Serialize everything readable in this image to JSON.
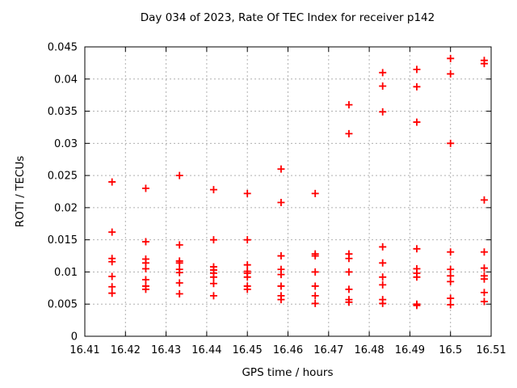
{
  "chart_data": {
    "type": "scatter",
    "title": "Day 034 of 2023, Rate Of TEC Index for receiver p142",
    "xlabel": "GPS time / hours",
    "ylabel": "ROTI / TECUs",
    "xlim": [
      16.41,
      16.51
    ],
    "ylim": [
      0,
      0.045
    ],
    "xticks": [
      16.41,
      16.42,
      16.43,
      16.44,
      16.45,
      16.46,
      16.47,
      16.48,
      16.49,
      16.5,
      16.51
    ],
    "xtick_labels": [
      "16.41",
      "16.42",
      "16.43",
      "16.44",
      "16.45",
      "16.46",
      "16.47",
      "16.48",
      "16.49",
      "16.5",
      "16.51"
    ],
    "yticks": [
      0,
      0.005,
      0.01,
      0.015,
      0.02,
      0.025,
      0.03,
      0.035,
      0.04,
      0.045
    ],
    "ytick_labels": [
      "0",
      "0.005",
      "0.01",
      "0.015",
      "0.02",
      "0.025",
      "0.03",
      "0.035",
      "0.04",
      "0.045"
    ],
    "grid": true,
    "grid_style": "dashed",
    "grid_color": "#b0b0b0",
    "legend": false,
    "marker": "plus",
    "marker_color": "#ff0000",
    "axis_color": "#000000",
    "series": [
      {
        "name": "ROTI",
        "points": [
          [
            16.4167,
            0.024
          ],
          [
            16.4167,
            0.0162
          ],
          [
            16.4167,
            0.0121
          ],
          [
            16.4167,
            0.0116
          ],
          [
            16.4167,
            0.0093
          ],
          [
            16.4167,
            0.0077
          ],
          [
            16.4167,
            0.0067
          ],
          [
            16.425,
            0.023
          ],
          [
            16.425,
            0.0147
          ],
          [
            16.425,
            0.012
          ],
          [
            16.425,
            0.0114
          ],
          [
            16.425,
            0.0105
          ],
          [
            16.425,
            0.0088
          ],
          [
            16.425,
            0.0078
          ],
          [
            16.425,
            0.0073
          ],
          [
            16.4333,
            0.025
          ],
          [
            16.4333,
            0.0142
          ],
          [
            16.4333,
            0.0117
          ],
          [
            16.4333,
            0.0114
          ],
          [
            16.4333,
            0.0104
          ],
          [
            16.4333,
            0.0099
          ],
          [
            16.4333,
            0.0083
          ],
          [
            16.4333,
            0.0066
          ],
          [
            16.4417,
            0.0228
          ],
          [
            16.4417,
            0.015
          ],
          [
            16.4417,
            0.0108
          ],
          [
            16.4417,
            0.0103
          ],
          [
            16.4417,
            0.0098
          ],
          [
            16.4417,
            0.0092
          ],
          [
            16.4417,
            0.0082
          ],
          [
            16.4417,
            0.0063
          ],
          [
            16.45,
            0.0222
          ],
          [
            16.45,
            0.015
          ],
          [
            16.45,
            0.0111
          ],
          [
            16.45,
            0.0101
          ],
          [
            16.45,
            0.0098
          ],
          [
            16.45,
            0.0092
          ],
          [
            16.45,
            0.0078
          ],
          [
            16.45,
            0.0073
          ],
          [
            16.4583,
            0.026
          ],
          [
            16.4583,
            0.0208
          ],
          [
            16.4583,
            0.0125
          ],
          [
            16.4583,
            0.0104
          ],
          [
            16.4583,
            0.0096
          ],
          [
            16.4583,
            0.0078
          ],
          [
            16.4583,
            0.0063
          ],
          [
            16.4583,
            0.0057
          ],
          [
            16.4667,
            0.0222
          ],
          [
            16.4667,
            0.0128
          ],
          [
            16.4667,
            0.0125
          ],
          [
            16.4667,
            0.01
          ],
          [
            16.4667,
            0.0078
          ],
          [
            16.4667,
            0.0063
          ],
          [
            16.4667,
            0.0051
          ],
          [
            16.475,
            0.036
          ],
          [
            16.475,
            0.0315
          ],
          [
            16.475,
            0.0128
          ],
          [
            16.475,
            0.0121
          ],
          [
            16.475,
            0.01
          ],
          [
            16.475,
            0.0073
          ],
          [
            16.475,
            0.0057
          ],
          [
            16.475,
            0.0053
          ],
          [
            16.4833,
            0.041
          ],
          [
            16.4833,
            0.0389
          ],
          [
            16.4833,
            0.0349
          ],
          [
            16.4833,
            0.0139
          ],
          [
            16.4833,
            0.0114
          ],
          [
            16.4833,
            0.0092
          ],
          [
            16.4833,
            0.008
          ],
          [
            16.4833,
            0.0057
          ],
          [
            16.4833,
            0.0051
          ],
          [
            16.4917,
            0.0415
          ],
          [
            16.4917,
            0.0388
          ],
          [
            16.4917,
            0.0333
          ],
          [
            16.4917,
            0.0136
          ],
          [
            16.4917,
            0.0105
          ],
          [
            16.4917,
            0.0098
          ],
          [
            16.4917,
            0.0092
          ],
          [
            16.4917,
            0.005
          ],
          [
            16.4917,
            0.0048
          ],
          [
            16.5,
            0.0432
          ],
          [
            16.5,
            0.0408
          ],
          [
            16.5,
            0.03
          ],
          [
            16.5,
            0.0131
          ],
          [
            16.5,
            0.0104
          ],
          [
            16.5,
            0.0094
          ],
          [
            16.5,
            0.0085
          ],
          [
            16.5,
            0.0059
          ],
          [
            16.5,
            0.0049
          ],
          [
            16.5083,
            0.0429
          ],
          [
            16.5083,
            0.0424
          ],
          [
            16.5083,
            0.0212
          ],
          [
            16.5083,
            0.0131
          ],
          [
            16.5083,
            0.0106
          ],
          [
            16.5083,
            0.0094
          ],
          [
            16.5083,
            0.0089
          ],
          [
            16.5083,
            0.0068
          ],
          [
            16.5083,
            0.0054
          ]
        ]
      }
    ]
  }
}
